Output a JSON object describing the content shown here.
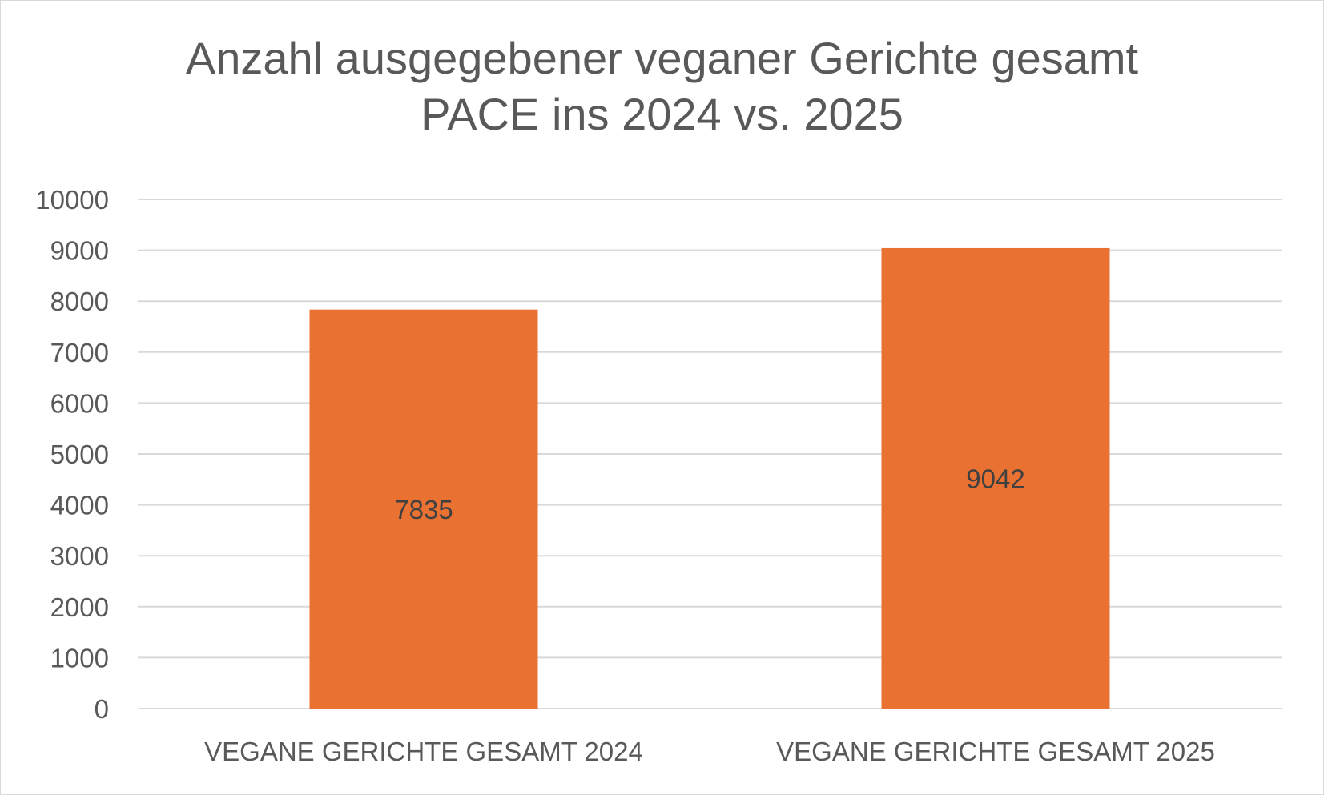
{
  "chart_data": {
    "type": "bar",
    "title_lines": [
      "Anzahl ausgegebener veganer Gerichte gesamt",
      "PACE ins 2024 vs. 2025"
    ],
    "categories": [
      "VEGANE GERICHTE GESAMT 2024",
      "VEGANE GERICHTE GESAMT 2025"
    ],
    "values": [
      7835,
      9042
    ],
    "data_labels": [
      "7835",
      "9042"
    ],
    "ylim": [
      0,
      10000
    ],
    "yticks": [
      0,
      1000,
      2000,
      3000,
      4000,
      5000,
      6000,
      7000,
      8000,
      9000,
      10000
    ],
    "ytick_labels": [
      "0",
      "1000",
      "2000",
      "3000",
      "4000",
      "5000",
      "6000",
      "7000",
      "8000",
      "9000",
      "10000"
    ],
    "grid": true,
    "legend": "none",
    "colors": {
      "bar": "#E97132",
      "grid": "#d9d9d9",
      "text": "#595959",
      "data_label": "#404040"
    }
  }
}
